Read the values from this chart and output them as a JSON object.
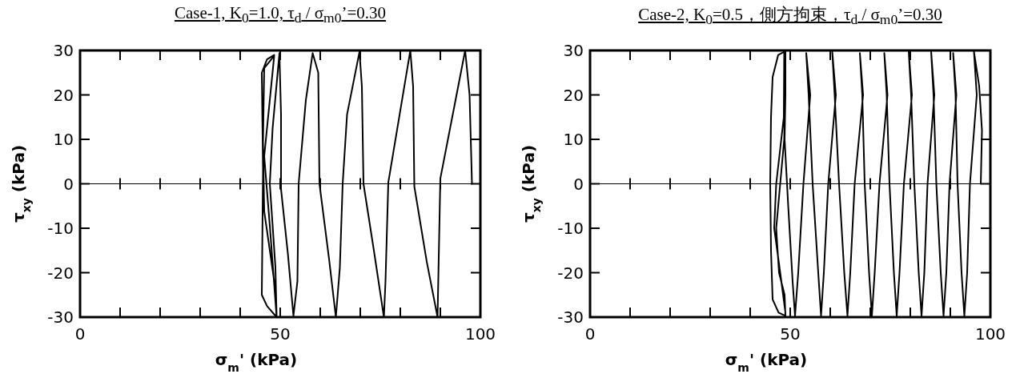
{
  "chart_data": [
    {
      "type": "line",
      "title": "Case-1, K$_{0}$=1.0, τ$_{d}$ / σ$_{m0}$’=0.30",
      "xlabel": "σ$_{m}$'  (kPa)",
      "ylabel": "τ$_{xy}$  (kPa)",
      "xlim": [
        0,
        100
      ],
      "ylim": [
        -30,
        30
      ],
      "xticks": [
        0,
        {
          "value": 10,
          "label": null
        },
        {
          "value": 20,
          "label": null
        },
        {
          "value": 30,
          "label": null
        },
        {
          "value": 40,
          "label": null
        },
        50,
        {
          "value": 60,
          "label": null
        },
        {
          "value": 70,
          "label": null
        },
        {
          "value": 80,
          "label": null
        },
        {
          "value": 90,
          "label": null
        },
        100
      ],
      "yticks": [
        -30,
        -20,
        -10,
        0,
        10,
        20,
        30
      ],
      "ref_lines": [
        {
          "axis": "y",
          "value": 0,
          "color": "#000000"
        }
      ],
      "grid": false,
      "series": [
        {
          "color": "#000000",
          "x": [
            97.9,
            97.3,
            96.2,
            90.0,
            89.3,
            86.6,
            83.5,
            83.2,
            82.5,
            77.0,
            76.3,
            75.9,
            73.5,
            70.8,
            70.4,
            69.8,
            66.7,
            65.6,
            64.9,
            63.9,
            62.2,
            59.8,
            59.5,
            58.1,
            56.4,
            54.6,
            54.3,
            53.3,
            51.9,
            50.2,
            50.2,
            49.8,
            48.1,
            47.4,
            48.8,
            49.1,
            47.4,
            46.0,
            48.5,
            46.0,
            45.7,
            46.0,
            48.5,
            49.1,
            46.7,
            45.4,
            45.7,
            45.4,
            46.7,
            48.5
          ],
          "values": [
            0,
            20,
            30,
            1.2,
            -30,
            -17.5,
            -0.6,
            21.9,
            30,
            0.3,
            -21.9,
            -30,
            -15.6,
            0,
            21.9,
            29.7,
            15.6,
            0,
            -18.8,
            -30,
            -16.9,
            0,
            25,
            29.4,
            18.8,
            0,
            -21.9,
            -29.7,
            -15.6,
            -1.2,
            15.6,
            29.4,
            12.5,
            0,
            -18.8,
            -30,
            -9.4,
            6.2,
            28.8,
            26,
            9.4,
            -6.2,
            -21.9,
            -30,
            -27.5,
            -25,
            3.1,
            25,
            28,
            29
          ]
        }
      ]
    },
    {
      "type": "line",
      "title": "Case-2, K$_{0}$=0.5，側方拘束，τ$_{d}$ / σ$_{m0}$’=0.30",
      "xlabel": "σ$_{m}$'  (kPa)",
      "ylabel": "τ$_{xy}$  (kPa)",
      "xlim": [
        0,
        100
      ],
      "ylim": [
        -30,
        30
      ],
      "xticks": [
        0,
        {
          "value": 10,
          "label": null
        },
        {
          "value": 20,
          "label": null
        },
        {
          "value": 30,
          "label": null
        },
        {
          "value": 40,
          "label": null
        },
        50,
        {
          "value": 60,
          "label": null
        },
        {
          "value": 70,
          "label": null
        },
        {
          "value": 80,
          "label": null
        },
        {
          "value": 90,
          "label": null
        },
        100
      ],
      "yticks": [
        -30,
        -20,
        -10,
        0,
        10,
        20,
        30
      ],
      "ref_lines": [
        {
          "axis": "y",
          "value": 0,
          "color": "#000000"
        }
      ],
      "grid": false,
      "series": [
        {
          "color": "#000000",
          "x": [
            97.6,
            97.9,
            97.2,
            95.9,
            96.6,
            94.9,
            94.2,
            93.5,
            92.8,
            91.8,
            91.3,
            90.7,
            91.5,
            89.8,
            89.0,
            88.3,
            87.6,
            86.5,
            85.8,
            85.2,
            86.0,
            84.3,
            83.5,
            82.8,
            82.1,
            81.0,
            80.2,
            79.6,
            80.4,
            78.4,
            77.3,
            76.6,
            75.9,
            74.8,
            74.1,
            73.5,
            74.3,
            72.3,
            71.1,
            70.4,
            69.7,
            68.6,
            68.0,
            67.4,
            68.2,
            66.1,
            65.0,
            64.3,
            63.5,
            62.2,
            61.1,
            60.5,
            61.4,
            59.5,
            58.4,
            57.7,
            57.0,
            55.6,
            54.6,
            54.0,
            55.0,
            53.3,
            52.0,
            51.2,
            50.6,
            49.5,
            48.6,
            48.8,
            48.8,
            48.5,
            46.5,
            47.2,
            48.6,
            48.8,
            47.1,
            45.6,
            45.2,
            45.0,
            45.2,
            45.6,
            47.0,
            48.5,
            48.4,
            46.5,
            46.0,
            47.5,
            48.8
          ],
          "values": [
            0,
            12,
            22,
            29.7,
            20,
            0,
            -20,
            -29.7,
            -20,
            0,
            20,
            29.4,
            20,
            0,
            -20,
            -29.7,
            -20,
            0,
            20,
            29.8,
            20,
            0,
            -20,
            -29.7,
            -20,
            0,
            20,
            29.8,
            20,
            0,
            -20,
            -29.7,
            -20,
            0,
            20,
            29.4,
            20,
            0,
            -20,
            -29.7,
            -20,
            0,
            20,
            29.4,
            20,
            0,
            -20,
            -29.7,
            -20,
            0,
            20,
            29.7,
            20,
            0,
            -20,
            -29.7,
            -20,
            0,
            20,
            29.4,
            20,
            0,
            -20,
            -29.7,
            -22,
            -5,
            10,
            20,
            29.7,
            10,
            -10,
            -20,
            -25,
            -29.7,
            -29,
            -26,
            -15,
            0,
            15,
            24,
            29,
            29.7,
            15,
            0,
            -10,
            -20,
            -29
          ]
        }
      ]
    }
  ]
}
